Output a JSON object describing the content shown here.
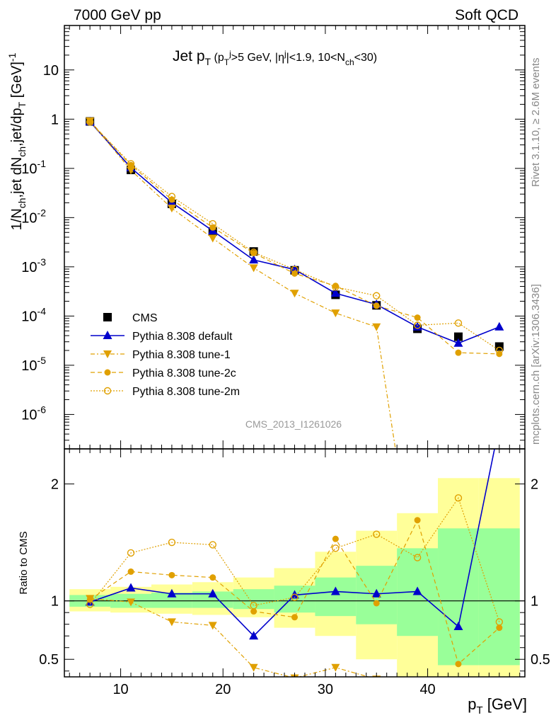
{
  "header": {
    "left": "7000 GeV pp",
    "right": "Soft QCD"
  },
  "side_labels": {
    "rivet": "Rivet 3.1.10, ≥ 2.6M events",
    "mcplots": "mcplots.cern.ch [arXiv:1306.3436]"
  },
  "colors": {
    "data": "#000000",
    "default": "#0000cc",
    "tune": "#e0a000",
    "band_inner": "#99ff99",
    "band_outer": "#ffff99"
  },
  "chart_data": [
    {
      "type": "scatter",
      "title": "Jet p_T (p_T^j>5 GeV, |η^j|<1.9, 10<N_ch<30)",
      "title_parts": {
        "main": "Jet p",
        "sub": "T",
        "detail": "(p_T^j>5 GeV, |η^j|<1.9, 10<N_ch<30)"
      },
      "ylabel": "1/N_ch,jet dN_ch,jet/dp_T [GeV]^-1",
      "xlabel": "p_T [GeV]",
      "analysis_tag": "CMS_2013_I1261026",
      "log_y": true,
      "xlim": [
        4.5,
        49.5
      ],
      "ylim": [
        2e-07,
        80
      ],
      "x_ticks": [
        10,
        20,
        30,
        40
      ],
      "y_ticks": [
        {
          "v": 1e-06,
          "label": "10^-6"
        },
        {
          "v": 1e-05,
          "label": "10^-5"
        },
        {
          "v": 0.0001,
          "label": "10^-4"
        },
        {
          "v": 0.001,
          "label": "10^-3"
        },
        {
          "v": 0.01,
          "label": "10^-2"
        },
        {
          "v": 0.1,
          "label": "10^-1"
        },
        {
          "v": 1,
          "label": "1"
        },
        {
          "v": 10,
          "label": "10"
        }
      ],
      "x": [
        7,
        11,
        15,
        19,
        23,
        27,
        31,
        35,
        39,
        43,
        47
      ],
      "series": [
        {
          "name": "CMS",
          "style": "data",
          "values": [
            0.9,
            0.093,
            0.019,
            0.0052,
            0.00205,
            0.00085,
            0.00027,
            0.000165,
            5.5e-05,
            3.8e-05,
            2.4e-05
          ]
        },
        {
          "name": "Pythia 8.308 default",
          "style": "default",
          "values": [
            0.89,
            0.103,
            0.0202,
            0.0054,
            0.00138,
            0.00088,
            0.00029,
            0.000172,
            6e-05,
            2.8e-05,
            6e-05
          ]
        },
        {
          "name": "Pythia 8.308 tune-1",
          "style": "tune1",
          "values": [
            0.92,
            0.092,
            0.0155,
            0.0038,
            0.00095,
            0.00029,
            0.000115,
            6e-05,
            0.0,
            0.0,
            0.0
          ]
        },
        {
          "name": "Pythia 8.308 tune-2c",
          "style": "tune2c",
          "values": [
            0.91,
            0.117,
            0.0232,
            0.0063,
            0.0019,
            0.00073,
            0.00041,
            0.000162,
            9.3e-05,
            1.8e-05,
            1.7e-05
          ]
        },
        {
          "name": "Pythia 8.308 tune-2m",
          "style": "tune2m",
          "values": [
            0.88,
            0.124,
            0.0268,
            0.0075,
            0.00197,
            0.00088,
            0.00039,
            0.000258,
            6.5e-05,
            7.2e-05,
            2e-05
          ]
        }
      ]
    },
    {
      "type": "line",
      "ylabel": "Ratio to CMS",
      "xlabel": "p_T [GeV]",
      "xlim": [
        4.5,
        49.5
      ],
      "ylim": [
        0.35,
        2.3
      ],
      "y_ticks": [
        0.5,
        1,
        2
      ],
      "x_ticks": [
        10,
        20,
        30,
        40
      ],
      "bands": {
        "edges": [
          5,
          9,
          13,
          17,
          21,
          25,
          29,
          33,
          37,
          41,
          45,
          49
        ],
        "inner": [
          [
            0.95,
            1.05
          ],
          [
            0.94,
            1.06
          ],
          [
            0.94,
            1.07
          ],
          [
            0.94,
            1.08
          ],
          [
            0.93,
            1.1
          ],
          [
            0.9,
            1.13
          ],
          [
            0.87,
            1.2
          ],
          [
            0.8,
            1.3
          ],
          [
            0.7,
            1.45
          ],
          [
            0.45,
            1.62
          ],
          [
            0.45,
            1.62
          ]
        ],
        "outer": [
          [
            0.91,
            1.1
          ],
          [
            0.9,
            1.12
          ],
          [
            0.89,
            1.14
          ],
          [
            0.88,
            1.16
          ],
          [
            0.86,
            1.2
          ],
          [
            0.77,
            1.28
          ],
          [
            0.7,
            1.42
          ],
          [
            0.5,
            1.6
          ],
          [
            0.3,
            1.75
          ],
          [
            0.3,
            2.05
          ],
          [
            0.3,
            2.05
          ]
        ]
      },
      "x": [
        7,
        11,
        15,
        19,
        23,
        27,
        31,
        35,
        39,
        43,
        47
      ],
      "series": [
        {
          "name": "Pythia 8.308 default",
          "style": "default",
          "values": [
            0.99,
            1.11,
            1.06,
            1.06,
            0.7,
            1.05,
            1.08,
            1.06,
            1.08,
            0.78,
            2.5
          ]
        },
        {
          "name": "Pythia 8.308 tune-1",
          "style": "tune1",
          "values": [
            1.02,
            0.99,
            0.82,
            0.79,
            0.43,
            0.34,
            0.43,
            0.33,
            0.3,
            0.3,
            0.3
          ]
        },
        {
          "name": "Pythia 8.308 tune-2c",
          "style": "tune2c",
          "values": [
            1.01,
            1.25,
            1.22,
            1.2,
            0.91,
            0.86,
            1.53,
            0.98,
            1.69,
            0.46,
            0.77
          ]
        },
        {
          "name": "Pythia 8.308 tune-2m",
          "style": "tune2m",
          "values": [
            0.97,
            1.41,
            1.5,
            1.48,
            0.96,
            1.03,
            1.45,
            1.57,
            1.37,
            1.88,
            0.82
          ]
        }
      ]
    }
  ]
}
